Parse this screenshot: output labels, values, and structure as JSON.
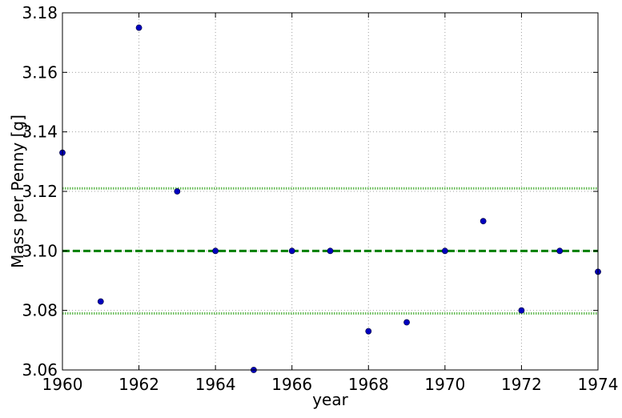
{
  "chart_data": {
    "type": "scatter",
    "title": "",
    "xlabel": "year",
    "ylabel": "Mass per Penny [g]",
    "xlim": [
      1960,
      1974
    ],
    "ylim": [
      3.06,
      3.18
    ],
    "xticks": [
      "1960",
      "1962",
      "1964",
      "1966",
      "1968",
      "1970",
      "1972",
      "1974"
    ],
    "yticks": [
      "3.06",
      "3.08",
      "3.10",
      "3.12",
      "3.14",
      "3.16",
      "3.18"
    ],
    "grid": true,
    "series": [
      {
        "color": "#0000bf",
        "x": [
          1960,
          1961,
          1962,
          1963,
          1964,
          1965,
          1966,
          1967,
          1968,
          1969,
          1970,
          1971,
          1972,
          1973,
          1974
        ],
        "y": [
          3.133,
          3.083,
          3.175,
          3.12,
          3.1,
          3.06,
          3.1,
          3.1,
          3.073,
          3.076,
          3.1,
          3.11,
          3.08,
          3.1,
          3.093
        ]
      }
    ],
    "reference_lines": [
      {
        "y": 3.1,
        "style": "dashed",
        "color": "#007f00"
      },
      {
        "y": 3.121,
        "style": "dotted",
        "color": "#66bb55"
      },
      {
        "y": 3.079,
        "style": "dotted",
        "color": "#66bb55"
      }
    ]
  }
}
